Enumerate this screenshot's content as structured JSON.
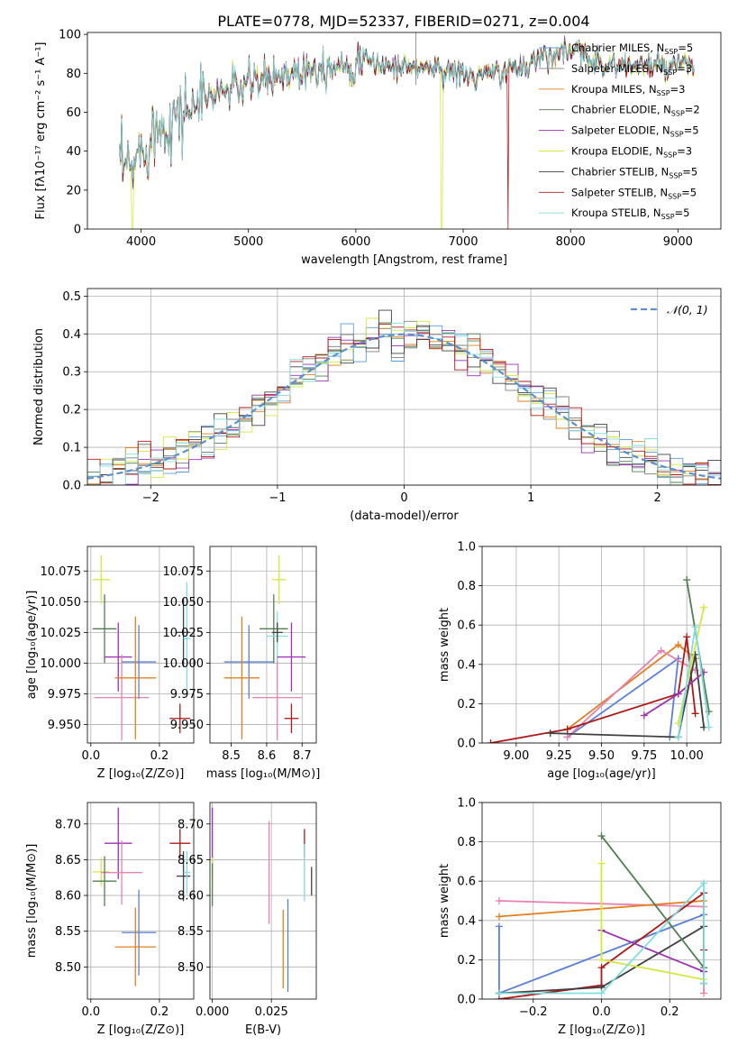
{
  "figure": {
    "title": "PLATE=0778, MJD=52337, FIBERID=0271, z=0.004"
  },
  "colors": {
    "Chabrier MILES": "#5b9bd5",
    "Salpeter MILES": "#7f7f7f",
    "Kroupa MILES": "#e08020",
    "Chabrier ELODIE": "#4f7f4f",
    "Salpeter ELODIE": "#9b30b0",
    "Kroupa ELODIE": "#d4e840",
    "Chabrier STELIB": "#404040",
    "Salpeter STELIB": "#b01818",
    "Kroupa STELIB": "#80dde0",
    "extra_blue": "#5b7fd8",
    "extra_pink": "#e880b0",
    "normal_curve": "#5b8fd0"
  },
  "chart_data": [
    {
      "type": "line",
      "id": "spectrum",
      "xlabel": "wavelength [Angstrom, rest frame]",
      "ylabel": "Flux [fλ10⁻¹⁷ erg cm⁻² s⁻¹ A⁻¹]",
      "xlim": [
        3500,
        9400
      ],
      "ylim": [
        0,
        101
      ],
      "xticks": [
        4000,
        5000,
        6000,
        7000,
        8000,
        9000
      ],
      "yticks": [
        0,
        20,
        40,
        60,
        80,
        100
      ],
      "legend_position": "top-right",
      "legend": [
        {
          "label": "Chabrier MILES, N_SSP=5",
          "prefix": "Chabrier MILES, N",
          "sub": "SSP",
          "suffix": "=5",
          "color_key": "Chabrier MILES"
        },
        {
          "label": "Salpeter MILES, N_SSP=3",
          "prefix": "Salpeter MILES, N",
          "sub": "SSP",
          "suffix": "=3",
          "color_key": "Salpeter MILES"
        },
        {
          "label": "Kroupa MILES, N_SSP=3",
          "prefix": "Kroupa MILES, N",
          "sub": "SSP",
          "suffix": "=3",
          "color_key": "Kroupa MILES"
        },
        {
          "label": "Chabrier ELODIE, N_SSP=2",
          "prefix": "Chabrier ELODIE, N",
          "sub": "SSP",
          "suffix": "=2",
          "color_key": "Chabrier ELODIE"
        },
        {
          "label": "Salpeter ELODIE, N_SSP=5",
          "prefix": "Salpeter ELODIE, N",
          "sub": "SSP",
          "suffix": "=5",
          "color_key": "Salpeter ELODIE"
        },
        {
          "label": "Kroupa ELODIE, N_SSP=3",
          "prefix": "Kroupa ELODIE, N",
          "sub": "SSP",
          "suffix": "=3",
          "color_key": "Kroupa ELODIE"
        },
        {
          "label": "Chabrier STELIB, N_SSP=5",
          "prefix": "Chabrier STELIB, N",
          "sub": "SSP",
          "suffix": "=5",
          "color_key": "Chabrier STELIB"
        },
        {
          "label": "Salpeter STELIB, N_SSP=5",
          "prefix": "Salpeter STELIB, N",
          "sub": "SSP",
          "suffix": "=5",
          "color_key": "Salpeter STELIB"
        },
        {
          "label": "Kroupa STELIB, N_SSP=5",
          "prefix": "Kroupa STELIB, N",
          "sub": "SSP",
          "suffix": "=5",
          "color_key": "Kroupa STELIB"
        }
      ],
      "continuum": {
        "x": [
          3800,
          3900,
          4000,
          4100,
          4300,
          4500,
          4700,
          4900,
          5100,
          5300,
          5500,
          5700,
          5900,
          6100,
          6300,
          6500,
          6700,
          6900,
          7100,
          7300,
          7500,
          7700,
          7900,
          8100,
          8300,
          8500,
          8700,
          8900,
          9100
        ],
        "y": [
          32,
          30,
          40,
          50,
          57,
          64,
          70,
          73,
          76,
          79,
          82,
          84,
          85,
          86,
          84,
          83,
          83,
          81,
          78,
          80,
          82,
          88,
          92,
          90,
          85,
          84,
          84,
          83,
          84
        ]
      },
      "drops": [
        {
          "series": "Kroupa ELODIE",
          "x": 3920
        },
        {
          "series": "Kroupa ELODIE",
          "x": 6800
        },
        {
          "series": "Salpeter STELIB",
          "x": 7420
        }
      ]
    },
    {
      "type": "histogram",
      "id": "residuals",
      "xlabel": "(data-model)/error",
      "ylabel": "Normed distribution",
      "xlim": [
        -2.5,
        2.5
      ],
      "ylim": [
        0,
        0.52
      ],
      "xticks": [
        -2,
        -1,
        0,
        1,
        2
      ],
      "yticks": [
        0.0,
        0.1,
        0.2,
        0.3,
        0.4,
        0.5
      ],
      "grid": true,
      "bin_width": 0.1,
      "normal_label": "𝒩(0, 1)",
      "legend_position": "top-right"
    },
    {
      "type": "scatter",
      "id": "age-vs-Z",
      "xlabel": "Z [log₁₀(Z/Z⊙)]",
      "ylabel": "age  [log₁₀(age/yr)]",
      "xlim": [
        -0.01,
        0.3
      ],
      "ylim": [
        9.935,
        10.095
      ],
      "xticks": [
        0.0,
        0.2
      ],
      "yticks": [
        9.95,
        9.975,
        10.0,
        10.025,
        10.05,
        10.075
      ],
      "grid": true,
      "points": [
        {
          "color_key": "Kroupa ELODIE",
          "x": 0.03,
          "y": 10.068,
          "xerr": 0.025,
          "yerr": 0.02
        },
        {
          "color_key": "Chabrier ELODIE",
          "x": 0.04,
          "y": 10.028,
          "xerr": 0.035,
          "yerr": 0.028
        },
        {
          "color_key": "Salpeter ELODIE",
          "x": 0.08,
          "y": 10.005,
          "xerr": 0.04,
          "yerr": 0.028
        },
        {
          "color_key": "extra_pink",
          "x": 0.09,
          "y": 9.972,
          "xerr": 0.08,
          "yerr": 0.035
        },
        {
          "color_key": "extra_blue",
          "x": 0.14,
          "y": 10.001,
          "xerr": 0.05,
          "yerr": 0.03
        },
        {
          "color_key": "Kroupa MILES",
          "x": 0.13,
          "y": 9.988,
          "xerr": 0.06,
          "yerr": 0.05
        },
        {
          "color_key": "Salpeter STELIB",
          "x": 0.26,
          "y": 9.955,
          "xerr": 0.03,
          "yerr": 0.012
        },
        {
          "color_key": "Chabrier STELIB",
          "x": 0.27,
          "y": 10.025,
          "xerr": 0.02,
          "yerr": 0.028
        },
        {
          "color_key": "Kroupa STELIB",
          "x": 0.28,
          "y": 10.02,
          "xerr": 0.01,
          "yerr": 0.046
        }
      ]
    },
    {
      "type": "scatter",
      "id": "age-vs-mass",
      "xlabel": "mass [log₁₀(M/M⊙)]",
      "ylabel": "",
      "xlim": [
        8.44,
        8.74
      ],
      "ylim": [
        9.935,
        10.095
      ],
      "xticks": [
        8.5,
        8.6,
        8.7
      ],
      "yticks": [
        9.95,
        9.975,
        10.0,
        10.025,
        10.05,
        10.075
      ],
      "grid": true,
      "points": [
        {
          "color_key": "extra_blue",
          "x": 8.55,
          "y": 10.001,
          "xerr": 0.07,
          "yerr": 0.03
        },
        {
          "color_key": "Kroupa MILES",
          "x": 8.53,
          "y": 9.988,
          "xerr": 0.05,
          "yerr": 0.05
        },
        {
          "color_key": "extra_pink",
          "x": 8.63,
          "y": 9.972,
          "xerr": 0.07,
          "yerr": 0.035
        },
        {
          "color_key": "Chabrier ELODIE",
          "x": 8.62,
          "y": 10.028,
          "xerr": 0.04,
          "yerr": 0.028
        },
        {
          "color_key": "Kroupa ELODIE",
          "x": 8.635,
          "y": 10.068,
          "xerr": 0.02,
          "yerr": 0.02
        },
        {
          "color_key": "Kroupa STELIB",
          "x": 8.63,
          "y": 10.022,
          "xerr": 0.03,
          "yerr": 0.02
        },
        {
          "color_key": "Chabrier STELIB",
          "x": 8.63,
          "y": 10.025,
          "xerr": 0.015,
          "yerr": 0.008
        },
        {
          "color_key": "Salpeter ELODIE",
          "x": 8.67,
          "y": 10.005,
          "xerr": 0.04,
          "yerr": 0.028
        },
        {
          "color_key": "Salpeter STELIB",
          "x": 8.67,
          "y": 9.955,
          "xerr": 0.02,
          "yerr": 0.012
        }
      ]
    },
    {
      "type": "line",
      "id": "massweight-vs-age",
      "xlabel": "age  [log₁₀(age/yr)]",
      "ylabel": "mass weight",
      "xlim": [
        8.8,
        10.2
      ],
      "ylim": [
        0.0,
        1.0
      ],
      "xticks": [
        9.0,
        9.25,
        9.5,
        9.75,
        10.0
      ],
      "yticks": [
        0.0,
        0.2,
        0.4,
        0.6,
        0.8,
        1.0
      ],
      "grid": true,
      "series": [
        {
          "color_key": "Kroupa MILES",
          "x": [
            9.3,
            9.95,
            10.05
          ],
          "y": [
            0.07,
            0.5,
            0.43
          ]
        },
        {
          "color_key": "extra_blue",
          "x": [
            9.3,
            9.95,
            9.9
          ],
          "y": [
            0.03,
            0.43,
            0.03
          ]
        },
        {
          "color_key": "extra_pink",
          "x": [
            9.3,
            9.85,
            10.05
          ],
          "y": [
            0.03,
            0.47,
            0.37
          ]
        },
        {
          "color_key": "Salpeter STELIB",
          "x": [
            8.85,
            9.3,
            9.95,
            10.0,
            10.05
          ],
          "y": [
            0.0,
            0.07,
            0.25,
            0.54,
            0.15
          ]
        },
        {
          "color_key": "Chabrier STELIB",
          "x": [
            9.2,
            9.95,
            10.05,
            10.1
          ],
          "y": [
            0.05,
            0.03,
            0.45,
            0.08
          ]
        },
        {
          "color_key": "Salpeter ELODIE",
          "x": [
            9.75,
            9.95,
            10.1
          ],
          "y": [
            0.14,
            0.25,
            0.36
          ]
        },
        {
          "color_key": "Chabrier ELODIE",
          "x": [
            10.0,
            10.13
          ],
          "y": [
            0.83,
            0.16
          ]
        },
        {
          "color_key": "Kroupa ELODIE",
          "x": [
            9.95,
            10.1
          ],
          "y": [
            0.1,
            0.69
          ]
        },
        {
          "color_key": "Kroupa STELIB",
          "x": [
            9.95,
            10.05,
            10.13
          ],
          "y": [
            0.03,
            0.59,
            0.08
          ]
        }
      ]
    },
    {
      "type": "scatter",
      "id": "mass-vs-Z",
      "xlabel": "Z [log₁₀(Z/Z⊙)]",
      "ylabel": "mass [log₁₀(M/M⊙)]",
      "xlim": [
        -0.01,
        0.3
      ],
      "ylim": [
        8.455,
        8.73
      ],
      "xticks": [
        0.0,
        0.2
      ],
      "yticks": [
        8.5,
        8.55,
        8.6,
        8.65,
        8.7
      ],
      "grid": true,
      "points": [
        {
          "color_key": "Salpeter ELODIE",
          "x": 0.08,
          "y": 8.673,
          "xerr": 0.04,
          "yerr": 0.05
        },
        {
          "color_key": "Kroupa ELODIE",
          "x": 0.03,
          "y": 8.633,
          "xerr": 0.025,
          "yerr": 0.02
        },
        {
          "color_key": "extra_pink",
          "x": 0.09,
          "y": 8.632,
          "xerr": 0.06,
          "yerr": 0.045
        },
        {
          "color_key": "Chabrier ELODIE",
          "x": 0.04,
          "y": 8.62,
          "xerr": 0.035,
          "yerr": 0.035
        },
        {
          "color_key": "extra_blue",
          "x": 0.14,
          "y": 8.548,
          "xerr": 0.05,
          "yerr": 0.06
        },
        {
          "color_key": "Kroupa MILES",
          "x": 0.13,
          "y": 8.528,
          "xerr": 0.06,
          "yerr": 0.055
        },
        {
          "color_key": "Salpeter STELIB",
          "x": 0.26,
          "y": 8.673,
          "xerr": 0.03,
          "yerr": 0.02
        },
        {
          "color_key": "Chabrier STELIB",
          "x": 0.27,
          "y": 8.627,
          "xerr": 0.02,
          "yerr": 0.035
        },
        {
          "color_key": "Kroupa STELIB",
          "x": 0.28,
          "y": 8.632,
          "xerr": 0.01,
          "yerr": 0.03
        }
      ]
    },
    {
      "type": "scatter",
      "id": "mass-vs-EBV",
      "xlabel": "E(B-V)",
      "ylabel": "",
      "xlim": [
        -0.001,
        0.044
      ],
      "ylim": [
        8.455,
        8.73
      ],
      "xticks": [
        0.0,
        0.025
      ],
      "yticks": [
        8.5,
        8.55,
        8.6,
        8.65,
        8.7
      ],
      "grid": true,
      "points": [
        {
          "color_key": "Salpeter ELODIE",
          "x": 0.0,
          "y": 8.673,
          "xerr": 0,
          "yerr": 0.05
        },
        {
          "color_key": "Kroupa ELODIE",
          "x": 0.0,
          "y": 8.633,
          "xerr": 0,
          "yerr": 0.02
        },
        {
          "color_key": "Chabrier ELODIE",
          "x": 0.0,
          "y": 8.615,
          "xerr": 0,
          "yerr": 0.03
        },
        {
          "color_key": "extra_pink",
          "x": 0.024,
          "y": 8.632,
          "xerr": 0,
          "yerr": 0.072
        },
        {
          "color_key": "Kroupa MILES",
          "x": 0.03,
          "y": 8.525,
          "xerr": 0,
          "yerr": 0.055
        },
        {
          "color_key": "extra_blue",
          "x": 0.032,
          "y": 8.53,
          "xerr": 0,
          "yerr": 0.065
        },
        {
          "color_key": "Salpeter STELIB",
          "x": 0.039,
          "y": 8.673,
          "xerr": 0,
          "yerr": 0.02
        },
        {
          "color_key": "Kroupa STELIB",
          "x": 0.039,
          "y": 8.632,
          "xerr": 0,
          "yerr": 0.04
        },
        {
          "color_key": "Chabrier STELIB",
          "x": 0.042,
          "y": 8.62,
          "xerr": 0,
          "yerr": 0.02
        }
      ]
    },
    {
      "type": "line",
      "id": "massweight-vs-Z",
      "xlabel": "Z [log₁₀(Z/Z⊙)]",
      "ylabel": "mass weight",
      "xlim": [
        -0.35,
        0.35
      ],
      "ylim": [
        0.0,
        1.0
      ],
      "xticks": [
        -0.2,
        0.0,
        0.2
      ],
      "yticks": [
        0.0,
        0.2,
        0.4,
        0.6,
        0.8,
        1.0
      ],
      "grid": true,
      "series": [
        {
          "color_key": "extra_blue",
          "x": [
            -0.3,
            -0.3,
            -0.3,
            0.3
          ],
          "y": [
            0.37,
            0.03,
            0.03,
            0.43
          ]
        },
        {
          "color_key": "extra_pink",
          "x": [
            -0.3,
            0.3,
            0.3
          ],
          "y": [
            0.5,
            0.47,
            0.03
          ]
        },
        {
          "color_key": "Kroupa MILES",
          "x": [
            -0.3,
            0.3
          ],
          "y": [
            0.42,
            0.5
          ]
        },
        {
          "color_key": "Salpeter STELIB",
          "x": [
            -0.3,
            0.0,
            0.0,
            0.3,
            0.3
          ],
          "y": [
            0.0,
            0.07,
            0.16,
            0.54,
            0.25
          ]
        },
        {
          "color_key": "Chabrier STELIB",
          "x": [
            -0.3,
            0.0,
            0.3,
            0.3
          ],
          "y": [
            0.03,
            0.06,
            0.37,
            0.08
          ]
        },
        {
          "color_key": "Salpeter ELODIE",
          "x": [
            0.0,
            0.3,
            0.3
          ],
          "y": [
            0.35,
            0.14,
            0.14
          ]
        },
        {
          "color_key": "Chabrier ELODIE",
          "x": [
            0.0,
            0.3
          ],
          "y": [
            0.83,
            0.16
          ]
        },
        {
          "color_key": "Kroupa ELODIE",
          "x": [
            0.0,
            0.0,
            0.3
          ],
          "y": [
            0.69,
            0.2,
            0.1
          ]
        },
        {
          "color_key": "Kroupa STELIB",
          "x": [
            -0.3,
            0.0,
            0.3,
            0.3
          ],
          "y": [
            0.03,
            0.03,
            0.59,
            0.08
          ]
        }
      ]
    }
  ]
}
